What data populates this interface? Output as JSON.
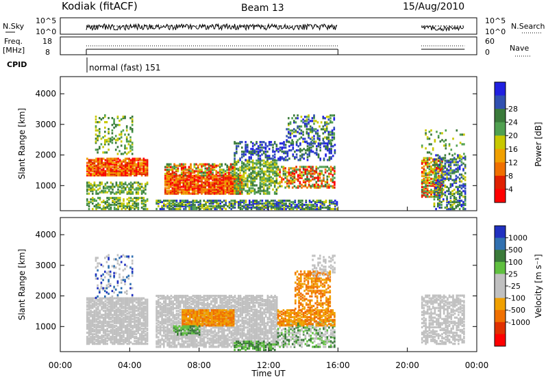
{
  "header": {
    "title": "Kodiak (fitACF)",
    "beam": "Beam 13",
    "date": "15/Aug/2010"
  },
  "nsky_panel": {
    "left_label": "N.Sky",
    "right_label": "N.Search",
    "left_ticks": [
      "10^5",
      "10^0"
    ],
    "right_ticks": [
      "10^5",
      "10^0"
    ]
  },
  "freq_panel": {
    "left_label_1": "Freq.",
    "left_label_2": "[MHz]",
    "right_label": "Nave",
    "left_ticks": [
      "18",
      "8"
    ],
    "right_ticks": [
      "60",
      "0"
    ]
  },
  "cpid": {
    "label": "CPID",
    "mode": "normal (fast) 151"
  },
  "chart_data": [
    {
      "type": "heatmap",
      "name": "power",
      "ylabel": "Slant Range [km]",
      "ylim": [
        180,
        4560
      ],
      "yticks": [
        "1000",
        "2000",
        "3000",
        "4000"
      ],
      "colorbar_label": "Power [dB]",
      "colorbar_ticks": [
        "4",
        "8",
        "12",
        "16",
        "20",
        "24",
        "28"
      ],
      "colorbar_colors": [
        "#2020e0",
        "#3050b0",
        "#3a7a3a",
        "#50a050",
        "#c8c800",
        "#f0a000",
        "#f07000",
        "#e02000",
        "#ff0000"
      ],
      "data_gaps_hours": [
        [
          16.0,
          20.8
        ]
      ]
    },
    {
      "type": "heatmap",
      "name": "velocity",
      "ylabel": "Slant Range [km]",
      "ylim": [
        180,
        4560
      ],
      "yticks": [
        "1000",
        "2000",
        "3000",
        "4000"
      ],
      "colorbar_label": "Velocity [m s⁻¹]",
      "colorbar_ticks": [
        "1000",
        "500",
        "100",
        "25",
        "-25",
        "-100",
        "-500",
        "-1000"
      ],
      "colorbar_colors": [
        "#2030c0",
        "#3070b0",
        "#3a7a3a",
        "#60c040",
        "#c0c0c0",
        "#c0c0c0",
        "#f0a000",
        "#f07000",
        "#e03000",
        "#ff0000"
      ],
      "data_gaps_hours": [
        [
          16.0,
          20.8
        ]
      ]
    }
  ],
  "xaxis": {
    "label": "Time UT",
    "ticks": [
      "00:00",
      "04:00",
      "08:00",
      "12:00",
      "16:00",
      "20:00",
      "00:00"
    ],
    "range_hours": [
      0,
      24
    ]
  }
}
